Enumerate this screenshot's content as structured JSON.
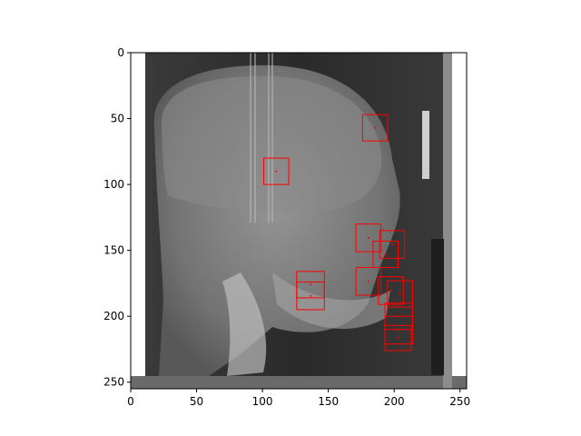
{
  "chart_data": {
    "type": "image",
    "subject": "lateral cephalometric skull x-ray",
    "xlim": [
      0,
      255
    ],
    "ylim": [
      255,
      0
    ],
    "xticks": [
      0,
      50,
      100,
      150,
      200,
      250
    ],
    "yticks": [
      0,
      50,
      100,
      150,
      200,
      250
    ],
    "xtick_labels": [
      "0",
      "50",
      "100",
      "150",
      "200",
      "250"
    ],
    "ytick_labels": [
      "0",
      "50",
      "100",
      "150",
      "200",
      "250"
    ],
    "box_color": "#ff0000",
    "landmark_boxes": [
      {
        "x": 176,
        "y": 47,
        "w": 19,
        "h": 20
      },
      {
        "x": 101,
        "y": 80,
        "w": 19,
        "h": 20
      },
      {
        "x": 171,
        "y": 130,
        "w": 19,
        "h": 21
      },
      {
        "x": 189,
        "y": 135,
        "w": 19,
        "h": 21
      },
      {
        "x": 184,
        "y": 143,
        "w": 19,
        "h": 20
      },
      {
        "x": 126,
        "y": 166,
        "w": 21,
        "h": 20
      },
      {
        "x": 126,
        "y": 174,
        "w": 21,
        "h": 21
      },
      {
        "x": 171,
        "y": 163,
        "w": 19,
        "h": 21
      },
      {
        "x": 188,
        "y": 170,
        "w": 19,
        "h": 21
      },
      {
        "x": 195,
        "y": 173,
        "w": 19,
        "h": 20
      },
      {
        "x": 193,
        "y": 190,
        "w": 21,
        "h": 20
      },
      {
        "x": 193,
        "y": 200,
        "w": 21,
        "h": 21
      },
      {
        "x": 193,
        "y": 207,
        "w": 20,
        "h": 19
      }
    ]
  }
}
